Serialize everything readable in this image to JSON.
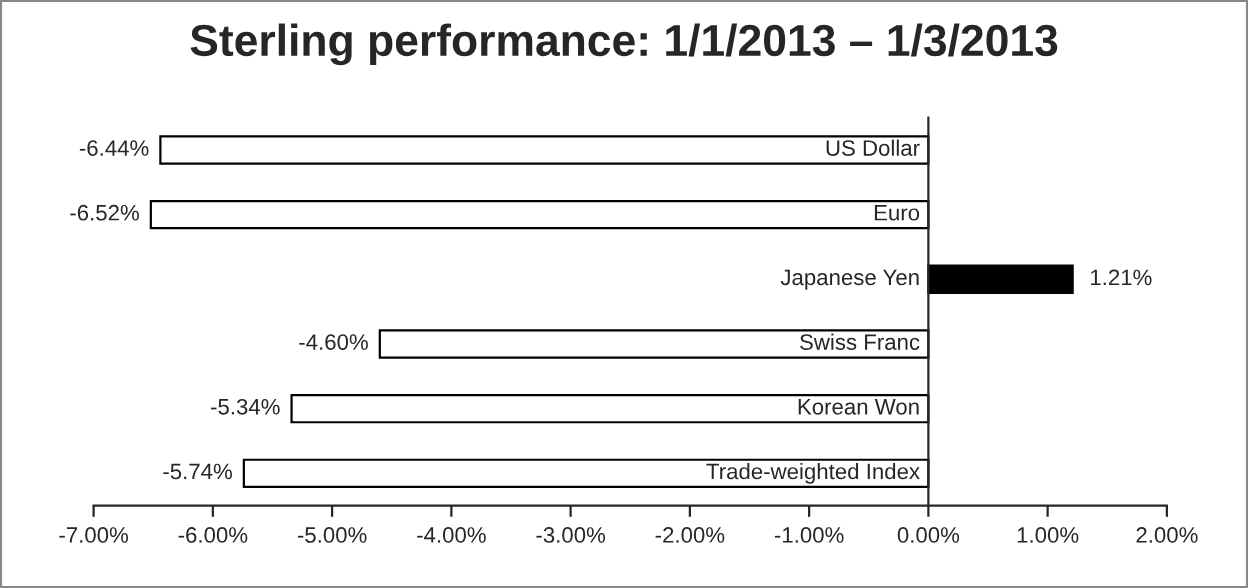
{
  "chart_data": {
    "type": "bar",
    "orientation": "horizontal",
    "title": "Sterling performance: 1/1/2013 – 1/3/2013",
    "categories": [
      "US Dollar",
      "Euro",
      "Japanese Yen",
      "Swiss Franc",
      "Korean Won",
      "Trade-weighted Index"
    ],
    "values": [
      -6.44,
      -6.52,
      1.21,
      -4.6,
      -5.34,
      -5.74
    ],
    "colors": [
      "#ffffff",
      "#ffffff",
      "#000000",
      "#ffffff",
      "#ffffff",
      "#ffffff"
    ],
    "value_labels": [
      "-6.44%",
      "-6.52%",
      "1.21%",
      "-4.60%",
      "-5.34%",
      "-5.74%"
    ],
    "xlim": [
      -7,
      2
    ],
    "xticks": [
      {
        "value": -7,
        "label": "-7.00%"
      },
      {
        "value": -6,
        "label": "-6.00%"
      },
      {
        "value": -5,
        "label": "-5.00%"
      },
      {
        "value": -4,
        "label": "-4.00%"
      },
      {
        "value": -3,
        "label": "-3.00%"
      },
      {
        "value": -2,
        "label": "-2.00%"
      },
      {
        "value": -1,
        "label": "-1.00%"
      },
      {
        "value": 0,
        "label": "0.00%"
      },
      {
        "value": 1,
        "label": "1.00%"
      },
      {
        "value": 2,
        "label": "2.00%"
      }
    ],
    "grid": false,
    "legend": false
  }
}
